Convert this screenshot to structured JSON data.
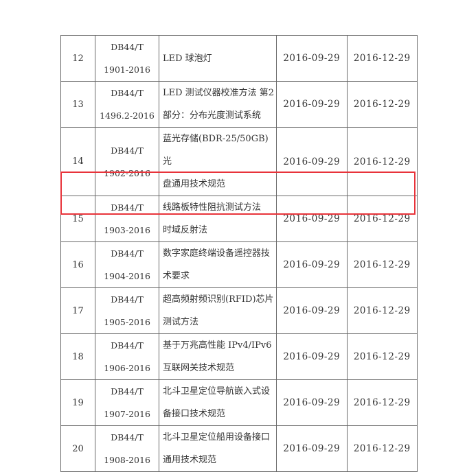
{
  "highlight_color": "#e8333a",
  "highlighted_row": "15",
  "rows": [
    {
      "no": "12",
      "code1": "DB44/T",
      "code2": "1901-2016",
      "name1": "LED 球泡灯",
      "name2": "",
      "publish": "2016-09-29",
      "effective": "2016-12-29"
    },
    {
      "no": "13",
      "code1": "DB44/T",
      "code2": "1496.2-2016",
      "name1": "LED 测试仪器校准方法 第2",
      "name2": "部分：分布光度测试系统",
      "publish": "2016-09-29",
      "effective": "2016-12-29"
    },
    {
      "no": "14",
      "code1": "DB44/T",
      "code2": "1902-2016",
      "name1": "蓝光存储(BDR-25/50GB)光",
      "name2": "盘通用技术规范",
      "publish": "2016-09-29",
      "effective": "2016-12-29"
    },
    {
      "no": "15",
      "code1": "DB44/T",
      "code2": "1903-2016",
      "name1": "线路板特性阻抗测试方法",
      "name2": "时域反射法",
      "publish": "2016-09-29",
      "effective": "2016-12-29"
    },
    {
      "no": "16",
      "code1": "DB44/T",
      "code2": "1904-2016",
      "name1": "数字家庭终端设备遥控器技",
      "name2": "术要求",
      "publish": "2016-09-29",
      "effective": "2016-12-29"
    },
    {
      "no": "17",
      "code1": "DB44/T",
      "code2": "1905-2016",
      "name1": "超高频射频识别(RFID)芯片",
      "name2": "测试方法",
      "publish": "2016-09-29",
      "effective": "2016-12-29"
    },
    {
      "no": "18",
      "code1": "DB44/T",
      "code2": "1906-2016",
      "name1": "基于万兆高性能 IPv4/IPv6",
      "name2": "互联网关技术规范",
      "publish": "2016-09-29",
      "effective": "2016-12-29"
    },
    {
      "no": "19",
      "code1": "DB44/T",
      "code2": "1907-2016",
      "name1": "北斗卫星定位导航嵌入式设",
      "name2": "备接口技术规范",
      "publish": "2016-09-29",
      "effective": "2016-12-29"
    },
    {
      "no": "20",
      "code1": "DB44/T",
      "code2": "1908-2016",
      "name1": "北斗卫星定位船用设备接口",
      "name2": "通用技术规范",
      "publish": "2016-09-29",
      "effective": "2016-12-29"
    }
  ]
}
